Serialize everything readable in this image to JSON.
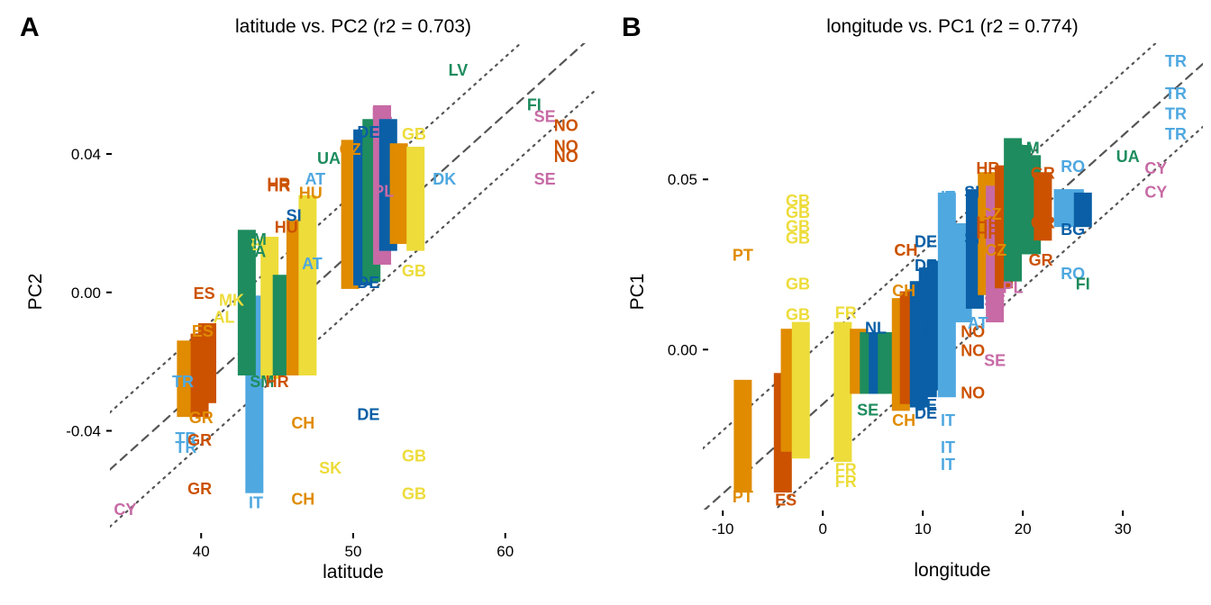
{
  "chart_data": [
    {
      "type": "scatter",
      "panel": "A",
      "title": "latitude vs. PC2 (r2 = 0.703)",
      "xlabel": "latitude",
      "ylabel": "PC2",
      "xlim": [
        34,
        66
      ],
      "ylim": [
        -0.069,
        0.072
      ],
      "xticks": [
        40,
        50,
        60
      ],
      "xticklabels": [
        "40",
        "50",
        "60"
      ],
      "yticks": [
        -0.04,
        0.0,
        0.04
      ],
      "yticklabels": [
        "-0.04",
        "0.00",
        "0.04"
      ],
      "fit": {
        "slope": 0.00395,
        "intercept": -0.1855,
        "band": 0.0165
      },
      "grid": false,
      "legend": "none",
      "colors": {
        "orange": "#E08B00",
        "vermillion": "#CC5200",
        "skyblue": "#4FA8E0",
        "green": "#1E8C5E",
        "yellow": "#EDDC3A",
        "blue": "#0A5FA6",
        "pink": "#C76AA5"
      },
      "points": [
        {
          "label": "CY",
          "x": 35.0,
          "y": -0.0625,
          "color": "pink"
        },
        {
          "label": "GR",
          "x": 39.9,
          "y": -0.0565,
          "color": "vermillion"
        },
        {
          "label": "TR",
          "x": 39.0,
          "y": -0.042,
          "color": "skyblue"
        },
        {
          "label": "TR",
          "x": 39.0,
          "y": -0.0445,
          "color": "skyblue"
        },
        {
          "label": "GR",
          "x": 39.9,
          "y": -0.0425,
          "color": "vermillion"
        },
        {
          "label": "TR",
          "x": 38.8,
          "y": -0.0255,
          "color": "skyblue"
        },
        {
          "label": "ES",
          "x": 40.2,
          "y": 0.0,
          "color": "vermillion"
        },
        {
          "label": "ES",
          "x": 40.1,
          "y": -0.011,
          "color": "orange"
        },
        {
          "label": "MK",
          "x": 42.0,
          "y": -0.002,
          "color": "yellow"
        },
        {
          "label": "AL",
          "x": 41.5,
          "y": -0.007,
          "color": "yellow"
        },
        {
          "label": "GR",
          "x": 40.0,
          "y": -0.036,
          "color": "orange"
        },
        {
          "label": "IT",
          "x": 43.6,
          "y": -0.0605,
          "color": "skyblue"
        },
        {
          "label": "IT",
          "x": 43.6,
          "y": -0.05,
          "color": "skyblue"
        },
        {
          "label": "SM",
          "x": 44.0,
          "y": -0.0255,
          "color": "green"
        },
        {
          "label": "HR",
          "x": 45.0,
          "y": -0.0255,
          "color": "vermillion"
        },
        {
          "label": "BA",
          "x": 44.0,
          "y": 0.014,
          "color": "yellow"
        },
        {
          "label": "SM",
          "x": 43.5,
          "y": 0.0155,
          "color": "green"
        },
        {
          "label": "BA",
          "x": 43.5,
          "y": 0.012,
          "color": "green"
        },
        {
          "label": "HR",
          "x": 45.1,
          "y": 0.031,
          "color": "vermillion"
        },
        {
          "label": "HR",
          "x": 45.1,
          "y": 0.0315,
          "color": "vermillion"
        },
        {
          "label": "HU",
          "x": 47.2,
          "y": 0.029,
          "color": "orange"
        },
        {
          "label": "HU",
          "x": 45.6,
          "y": 0.019,
          "color": "vermillion"
        },
        {
          "label": "SI",
          "x": 46.1,
          "y": 0.0225,
          "color": "blue"
        },
        {
          "label": "AT",
          "x": 47.5,
          "y": 0.033,
          "color": "skyblue"
        },
        {
          "label": "AT",
          "x": 47.3,
          "y": 0.0085,
          "color": "skyblue"
        },
        {
          "label": "UA",
          "x": 48.4,
          "y": 0.039,
          "color": "green"
        },
        {
          "label": "CZ",
          "x": 49.8,
          "y": 0.0415,
          "color": "orange"
        },
        {
          "label": "CH",
          "x": 46.7,
          "y": -0.0375,
          "color": "orange"
        },
        {
          "label": "CH",
          "x": 46.7,
          "y": -0.0595,
          "color": "orange"
        },
        {
          "label": "SK",
          "x": 48.5,
          "y": -0.0505,
          "color": "yellow"
        },
        {
          "label": "DE",
          "x": 51.0,
          "y": -0.035,
          "color": "blue"
        },
        {
          "label": "DE",
          "x": 51.0,
          "y": 0.0465,
          "color": "blue"
        },
        {
          "label": "DE",
          "x": 51.0,
          "y": 0.003,
          "color": "blue"
        },
        {
          "label": "PL",
          "x": 51.9,
          "y": 0.052,
          "color": "pink"
        },
        {
          "label": "PL",
          "x": 52.0,
          "y": 0.0295,
          "color": "pink"
        },
        {
          "label": "GB",
          "x": 54.0,
          "y": 0.046,
          "color": "yellow"
        },
        {
          "label": "GB",
          "x": 54.0,
          "y": 0.0065,
          "color": "yellow"
        },
        {
          "label": "GB",
          "x": 54.0,
          "y": -0.047,
          "color": "yellow"
        },
        {
          "label": "GB",
          "x": 54.0,
          "y": -0.058,
          "color": "yellow"
        },
        {
          "label": "DK",
          "x": 56.0,
          "y": 0.033,
          "color": "skyblue"
        },
        {
          "label": "LV",
          "x": 56.9,
          "y": 0.0645,
          "color": "green"
        },
        {
          "label": "FI",
          "x": 61.9,
          "y": 0.0545,
          "color": "green"
        },
        {
          "label": "SE",
          "x": 62.6,
          "y": 0.051,
          "color": "pink"
        },
        {
          "label": "SE",
          "x": 62.6,
          "y": 0.033,
          "color": "pink"
        },
        {
          "label": "NO",
          "x": 64.0,
          "y": 0.0485,
          "color": "vermillion"
        },
        {
          "label": "NO",
          "x": 64.0,
          "y": 0.0425,
          "color": "vermillion"
        },
        {
          "label": "NO",
          "x": 64.0,
          "y": 0.0395,
          "color": "vermillion"
        }
      ],
      "stacks": [
        {
          "x": 39.0,
          "y0": -0.036,
          "y1": -0.016,
          "color": "orange"
        },
        {
          "x": 39.9,
          "y0": -0.036,
          "y1": -0.014,
          "color": "vermillion"
        },
        {
          "x": 40.4,
          "y0": -0.032,
          "y1": -0.011,
          "color": "vermillion"
        },
        {
          "x": 43.5,
          "y0": -0.058,
          "y1": -0.003,
          "color": "skyblue"
        },
        {
          "x": 43.0,
          "y0": -0.024,
          "y1": 0.016,
          "color": "green"
        },
        {
          "x": 44.5,
          "y0": -0.025,
          "y1": 0.014,
          "color": "yellow"
        },
        {
          "x": 45.3,
          "y0": -0.024,
          "y1": 0.003,
          "color": "green"
        },
        {
          "x": 46.2,
          "y0": -0.024,
          "y1": 0.019,
          "color": "orange"
        },
        {
          "x": 47.0,
          "y0": -0.024,
          "y1": 0.026,
          "color": "yellow"
        },
        {
          "x": 49.8,
          "y0": 0.001,
          "y1": 0.042,
          "color": "orange"
        },
        {
          "x": 50.6,
          "y0": 0.002,
          "y1": 0.045,
          "color": "blue"
        },
        {
          "x": 51.2,
          "y0": 0.003,
          "y1": 0.048,
          "color": "green"
        },
        {
          "x": 51.9,
          "y0": 0.008,
          "y1": 0.052,
          "color": "pink"
        },
        {
          "x": 52.3,
          "y0": 0.012,
          "y1": 0.048,
          "color": "blue"
        },
        {
          "x": 53.0,
          "y0": 0.014,
          "y1": 0.041,
          "color": "orange"
        },
        {
          "x": 54.1,
          "y0": 0.012,
          "y1": 0.04,
          "color": "yellow"
        }
      ]
    },
    {
      "type": "scatter",
      "panel": "B",
      "title": "longitude vs. PC1 (r2 = 0.774)",
      "xlabel": "longitude",
      "ylabel": "PC1",
      "xlim": [
        -12,
        38
      ],
      "ylim": [
        -0.047,
        0.09
      ],
      "xticks": [
        -10,
        0,
        10,
        20,
        30
      ],
      "xticklabels": [
        "-10",
        "0",
        "10",
        "20",
        "30"
      ],
      "yticks": [
        0.0,
        0.05
      ],
      "yticklabels": [
        "0.00",
        "0.05"
      ],
      "fit": {
        "slope": 0.00263,
        "intercept": -0.016,
        "band": 0.0185
      },
      "grid": false,
      "legend": "none",
      "colors": {
        "orange": "#E08B00",
        "vermillion": "#CC5200",
        "skyblue": "#4FA8E0",
        "green": "#1E8C5E",
        "yellow": "#EDDC3A",
        "blue": "#0A5FA6",
        "pink": "#C76AA5"
      },
      "points": [
        {
          "label": "PT",
          "x": -8.0,
          "y": 0.028,
          "color": "orange"
        },
        {
          "label": "PT",
          "x": -8.0,
          "y": -0.043,
          "color": "orange"
        },
        {
          "label": "ES",
          "x": -3.7,
          "y": -0.044,
          "color": "vermillion"
        },
        {
          "label": "GB",
          "x": -2.5,
          "y": 0.044,
          "color": "yellow"
        },
        {
          "label": "GB",
          "x": -2.5,
          "y": 0.0405,
          "color": "yellow"
        },
        {
          "label": "GB",
          "x": -2.5,
          "y": 0.0365,
          "color": "yellow"
        },
        {
          "label": "GB",
          "x": -2.5,
          "y": 0.033,
          "color": "yellow"
        },
        {
          "label": "GB",
          "x": -2.5,
          "y": 0.0195,
          "color": "yellow"
        },
        {
          "label": "GB",
          "x": -2.5,
          "y": 0.0105,
          "color": "yellow"
        },
        {
          "label": "FR",
          "x": 2.3,
          "y": 0.011,
          "color": "yellow"
        },
        {
          "label": "FR",
          "x": 2.3,
          "y": -0.035,
          "color": "yellow"
        },
        {
          "label": "FR",
          "x": 2.3,
          "y": -0.0385,
          "color": "yellow"
        },
        {
          "label": "NL",
          "x": 5.3,
          "y": 0.0065,
          "color": "blue"
        },
        {
          "label": "SE",
          "x": 4.5,
          "y": -0.0175,
          "color": "green"
        },
        {
          "label": "CH",
          "x": 8.3,
          "y": 0.0295,
          "color": "orange"
        },
        {
          "label": "CH",
          "x": 8.3,
          "y": 0.0295,
          "color": "vermillion"
        },
        {
          "label": "CH",
          "x": 8.1,
          "y": 0.0175,
          "color": "orange"
        },
        {
          "label": "CH",
          "x": 8.1,
          "y": -0.0205,
          "color": "orange"
        },
        {
          "label": "DE",
          "x": 10.3,
          "y": 0.032,
          "color": "blue"
        },
        {
          "label": "DE",
          "x": 10.3,
          "y": 0.025,
          "color": "blue"
        },
        {
          "label": "DE",
          "x": 10.3,
          "y": 0.006,
          "color": "blue"
        },
        {
          "label": "DE",
          "x": 10.3,
          "y": -0.016,
          "color": "blue"
        },
        {
          "label": "DE",
          "x": 10.3,
          "y": -0.0185,
          "color": "blue"
        },
        {
          "label": "IT",
          "x": 12.5,
          "y": 0.045,
          "color": "skyblue"
        },
        {
          "label": "IT",
          "x": 12.5,
          "y": -0.0205,
          "color": "skyblue"
        },
        {
          "label": "IT",
          "x": 12.5,
          "y": -0.0285,
          "color": "skyblue"
        },
        {
          "label": "IT",
          "x": 12.5,
          "y": -0.0335,
          "color": "skyblue"
        },
        {
          "label": "SI",
          "x": 14.9,
          "y": 0.0465,
          "color": "blue"
        },
        {
          "label": "SI",
          "x": 14.9,
          "y": 0.033,
          "color": "blue"
        },
        {
          "label": "NO",
          "x": 15.0,
          "y": 0.0055,
          "color": "vermillion"
        },
        {
          "label": "NO",
          "x": 15.0,
          "y": 0.0,
          "color": "vermillion"
        },
        {
          "label": "NO",
          "x": 15.0,
          "y": -0.0125,
          "color": "vermillion"
        },
        {
          "label": "AT",
          "x": 15.5,
          "y": 0.008,
          "color": "skyblue"
        },
        {
          "label": "SE",
          "x": 17.2,
          "y": 0.0145,
          "color": "pink"
        },
        {
          "label": "SE",
          "x": 17.2,
          "y": -0.003,
          "color": "pink"
        },
        {
          "label": "PL",
          "x": 19.0,
          "y": 0.0185,
          "color": "pink"
        },
        {
          "label": "HR",
          "x": 16.5,
          "y": 0.0535,
          "color": "vermillion"
        },
        {
          "label": "HR",
          "x": 16.5,
          "y": 0.0375,
          "color": "vermillion"
        },
        {
          "label": "HR",
          "x": 16.5,
          "y": 0.0345,
          "color": "vermillion"
        },
        {
          "label": "CZ",
          "x": 16.8,
          "y": 0.04,
          "color": "orange"
        },
        {
          "label": "CZ",
          "x": 17.3,
          "y": 0.0295,
          "color": "orange"
        },
        {
          "label": "GR",
          "x": 21.8,
          "y": 0.0265,
          "color": "vermillion"
        },
        {
          "label": "GR",
          "x": 22.0,
          "y": 0.0375,
          "color": "vermillion"
        },
        {
          "label": "GR",
          "x": 22.0,
          "y": 0.052,
          "color": "vermillion"
        },
        {
          "label": "SaM",
          "x": 20.0,
          "y": 0.0595,
          "color": "green"
        },
        {
          "label": "SaM",
          "x": 20.0,
          "y": 0.0305,
          "color": "green"
        },
        {
          "label": "RO",
          "x": 25.0,
          "y": 0.054,
          "color": "skyblue"
        },
        {
          "label": "RO",
          "x": 25.0,
          "y": 0.0225,
          "color": "skyblue"
        },
        {
          "label": "BG",
          "x": 25.0,
          "y": 0.0355,
          "color": "blue"
        },
        {
          "label": "FI",
          "x": 26.0,
          "y": 0.0195,
          "color": "green"
        },
        {
          "label": "UA",
          "x": 30.5,
          "y": 0.057,
          "color": "green"
        },
        {
          "label": "CY",
          "x": 33.3,
          "y": 0.0535,
          "color": "pink"
        },
        {
          "label": "CY",
          "x": 33.3,
          "y": 0.0465,
          "color": "pink"
        },
        {
          "label": "TR",
          "x": 35.3,
          "y": 0.085,
          "color": "skyblue"
        },
        {
          "label": "TR",
          "x": 35.3,
          "y": 0.0755,
          "color": "skyblue"
        },
        {
          "label": "TR",
          "x": 35.3,
          "y": 0.0695,
          "color": "skyblue"
        },
        {
          "label": "TR",
          "x": 35.3,
          "y": 0.0635,
          "color": "skyblue"
        }
      ],
      "stacks": [
        {
          "x": -8.0,
          "y0": -0.042,
          "y1": -0.011,
          "color": "orange"
        },
        {
          "x": -4.0,
          "y0": -0.042,
          "y1": -0.009,
          "color": "vermillion"
        },
        {
          "x": -3.3,
          "y0": -0.03,
          "y1": 0.004,
          "color": "orange"
        },
        {
          "x": -2.2,
          "y0": -0.032,
          "y1": 0.006,
          "color": "yellow"
        },
        {
          "x": 2.0,
          "y0": -0.033,
          "y1": 0.006,
          "color": "yellow"
        },
        {
          "x": 3.6,
          "y0": -0.013,
          "y1": 0.004,
          "color": "orange"
        },
        {
          "x": 4.6,
          "y0": -0.013,
          "y1": 0.003,
          "color": "green"
        },
        {
          "x": 5.5,
          "y0": -0.013,
          "y1": 0.003,
          "color": "blue"
        },
        {
          "x": 6.4,
          "y0": -0.013,
          "y1": 0.003,
          "color": "green"
        },
        {
          "x": 7.8,
          "y0": -0.018,
          "y1": 0.013,
          "color": "orange"
        },
        {
          "x": 8.6,
          "y0": -0.016,
          "y1": 0.015,
          "color": "vermillion"
        },
        {
          "x": 9.6,
          "y0": -0.017,
          "y1": 0.018,
          "color": "blue"
        },
        {
          "x": 10.5,
          "y0": -0.014,
          "y1": 0.022,
          "color": "blue"
        },
        {
          "x": 11.3,
          "y0": -0.012,
          "y1": 0.024,
          "color": "blue"
        },
        {
          "x": 12.4,
          "y0": -0.014,
          "y1": 0.044,
          "color": "skyblue"
        },
        {
          "x": 14.0,
          "y0": 0.008,
          "y1": 0.035,
          "color": "skyblue"
        },
        {
          "x": 15.2,
          "y0": 0.012,
          "y1": 0.045,
          "color": "blue"
        },
        {
          "x": 16.4,
          "y0": 0.016,
          "y1": 0.05,
          "color": "orange"
        },
        {
          "x": 17.2,
          "y0": 0.008,
          "y1": 0.046,
          "color": "pink"
        },
        {
          "x": 18.1,
          "y0": 0.018,
          "y1": 0.052,
          "color": "vermillion"
        },
        {
          "x": 19.0,
          "y0": 0.02,
          "y1": 0.06,
          "color": "green"
        },
        {
          "x": 19.9,
          "y0": 0.028,
          "y1": 0.058,
          "color": "green"
        },
        {
          "x": 20.9,
          "y0": 0.028,
          "y1": 0.055,
          "color": "green"
        },
        {
          "x": 22.0,
          "y0": 0.032,
          "y1": 0.05,
          "color": "vermillion"
        },
        {
          "x": 24.0,
          "y0": 0.036,
          "y1": 0.045,
          "color": "skyblue"
        },
        {
          "x": 25.2,
          "y0": 0.036,
          "y1": 0.045,
          "color": "skyblue"
        },
        {
          "x": 26.0,
          "y0": 0.036,
          "y1": 0.044,
          "color": "blue"
        }
      ]
    }
  ]
}
